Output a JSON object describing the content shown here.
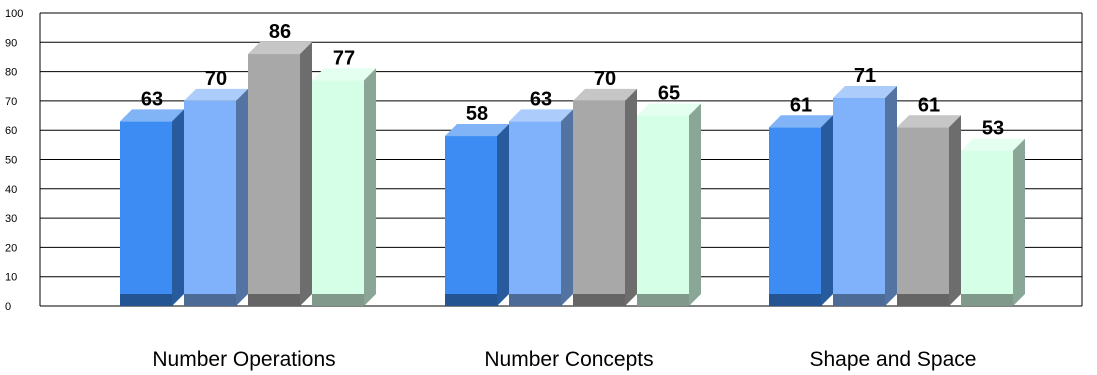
{
  "chart_data": {
    "type": "bar",
    "style": "3d",
    "categories": [
      "Number Operations",
      "Number Concepts",
      "Shape and Space"
    ],
    "series": [
      {
        "values": [
          63,
          58,
          61
        ],
        "color": "#3d8cf3"
      },
      {
        "values": [
          70,
          63,
          71
        ],
        "color": "#7fb2fb"
      },
      {
        "values": [
          86,
          70,
          61
        ],
        "color": "#a8a8a8"
      },
      {
        "values": [
          77,
          65,
          53
        ],
        "color": "#d5ffe6"
      }
    ],
    "ylim": [
      0,
      100
    ],
    "yticks": [
      "0",
      "10",
      "20",
      "30",
      "40",
      "50",
      "60",
      "70",
      "80",
      "90",
      "100"
    ],
    "grid": true,
    "legend": "none"
  }
}
